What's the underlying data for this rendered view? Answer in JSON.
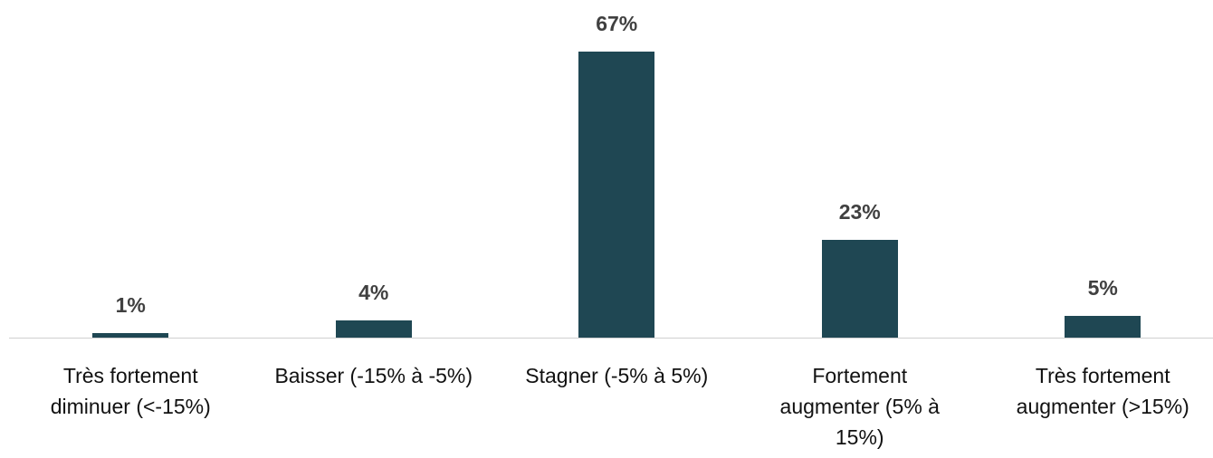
{
  "chart_data": {
    "type": "bar",
    "categories": [
      "Très fortement diminuer (<-15%)",
      "Baisser (-15% à -5%)",
      "Stagner (-5% à 5%)",
      "Fortement augmenter (5% à 15%)",
      "Très fortement augmenter (>15%)"
    ],
    "values": [
      1,
      4,
      67,
      23,
      5
    ],
    "value_labels": [
      "1%",
      "4%",
      "67%",
      "23%",
      "5%"
    ],
    "color": "#1f4753"
  }
}
